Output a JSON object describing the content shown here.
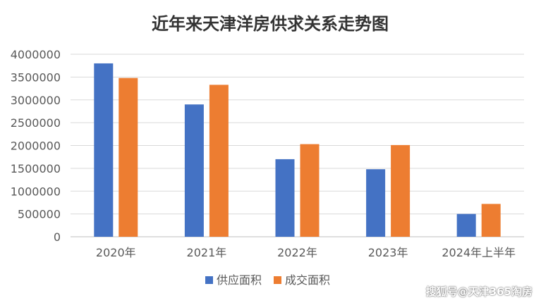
{
  "chart_data": {
    "type": "bar",
    "title": "近年来天津洋房供求关系走势图",
    "categories": [
      "2020年",
      "2021年",
      "2022年",
      "2023年",
      "2024年上半年"
    ],
    "series": [
      {
        "name": "供应面积",
        "color": "#4472C4",
        "values": [
          3800000,
          2900000,
          1700000,
          1480000,
          500000
        ]
      },
      {
        "name": "成交面积",
        "color": "#ED7D31",
        "values": [
          3480000,
          3330000,
          2030000,
          2010000,
          720000
        ]
      }
    ],
    "ylim": [
      0,
      4000000
    ],
    "yticks": [
      0,
      500000,
      1000000,
      1500000,
      2000000,
      2500000,
      3000000,
      3500000,
      4000000
    ],
    "ytick_labels": [
      "0",
      "500000",
      "1000000",
      "1500000",
      "2000000",
      "2500000",
      "3000000",
      "3500000",
      "4000000"
    ],
    "xlabel": "",
    "ylabel": "",
    "grid": true,
    "legend_position": "bottom"
  },
  "watermark": "搜狐号@天津365淘房"
}
